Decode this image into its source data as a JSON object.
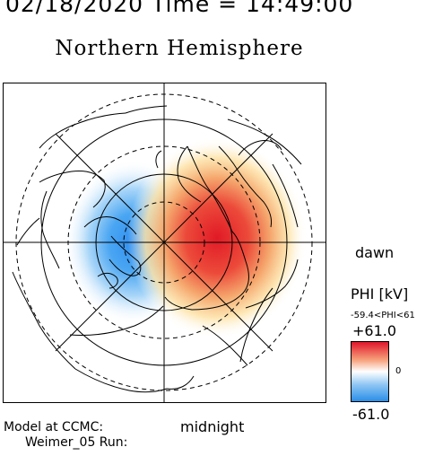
{
  "header": {
    "time_line": "02/18/2020 Time = 14:49:00",
    "title": "Northern Hemisphere"
  },
  "map": {
    "orientation": {
      "right_label": "dawn",
      "bottom_label": "midnight"
    },
    "potential_cells": [
      {
        "sign": "negative",
        "color": "#3b95ee"
      },
      {
        "sign": "positive",
        "color": "#e21f2a"
      }
    ]
  },
  "legend": {
    "label": "PHI [kV]",
    "range_text": "-59.4<PHI<61",
    "max": "+61.0",
    "zero": "0",
    "min": "-61.0",
    "colors": {
      "top": "#e0162b",
      "middle": "#ffffff",
      "bottom": "#2b8ee8"
    }
  },
  "footer": {
    "model_line": "Model at CCMC:",
    "run_line": "Weimer_05 Run:"
  }
}
